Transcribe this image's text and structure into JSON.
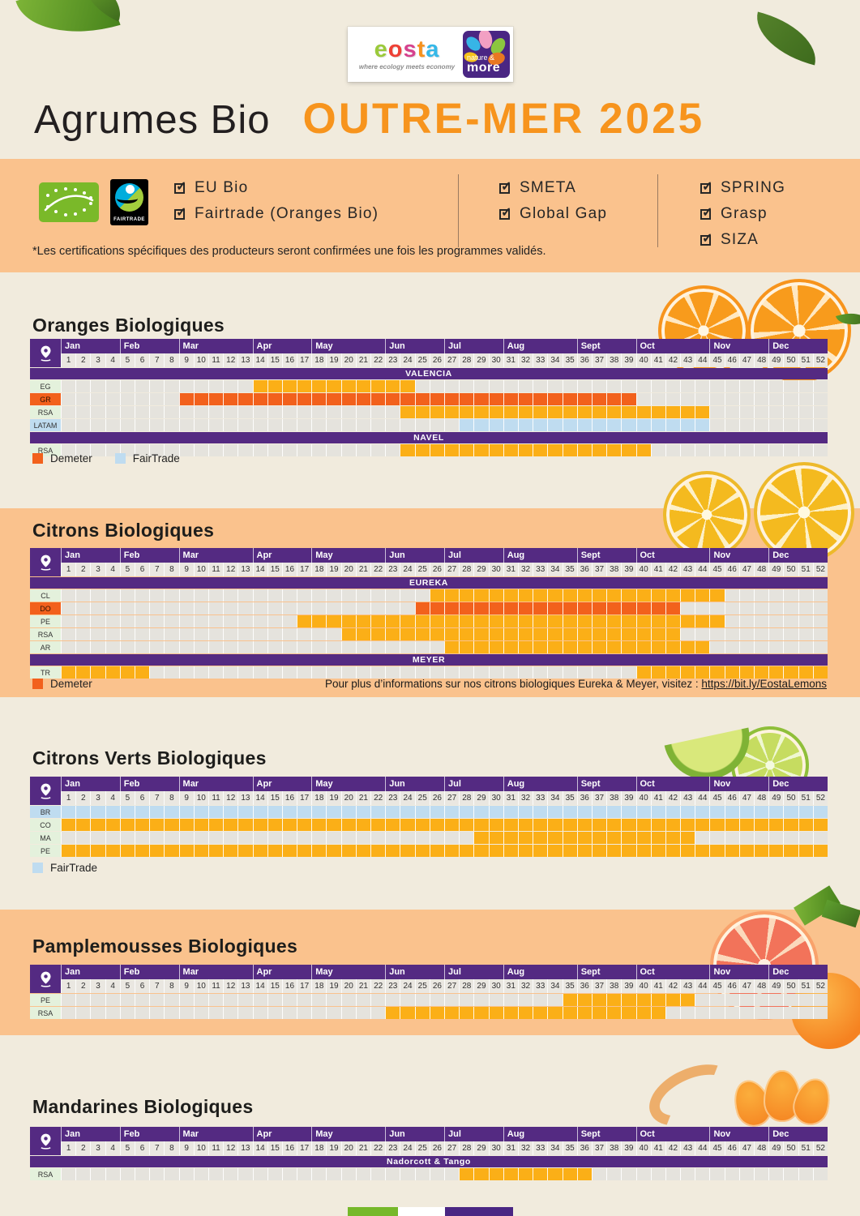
{
  "logo": {
    "brand_letters": [
      {
        "ch": "e",
        "color": "#9BCA3B"
      },
      {
        "ch": "o",
        "color": "#EE4035"
      },
      {
        "ch": "s",
        "color": "#D6428E"
      },
      {
        "ch": "t",
        "color": "#F6921E"
      },
      {
        "ch": "a",
        "color": "#35B8E8"
      }
    ],
    "tagline": "where ecology meets economy",
    "nature_more": {
      "line1": "nature &",
      "line2": "more"
    },
    "fairtrade_label": "FAIRTRADE"
  },
  "header": {
    "title_black": "Agrumes Bio",
    "title_orange": "OUTRE-MER 2025"
  },
  "certifications": {
    "groups": [
      [
        "EU Bio",
        "Fairtrade (Oranges Bio)"
      ],
      [
        "SMETA",
        "Global Gap"
      ],
      [
        "SPRING",
        "Grasp",
        "SIZA"
      ]
    ],
    "note": "*Les certifications spécifiques des producteurs seront confirmées une fois les programmes validés."
  },
  "icons": {
    "check": "✓"
  },
  "palette": {
    "yellow": "#FBAF17",
    "demeter": "#F2611C",
    "fairtrade": "#BFDCF0",
    "purple": "#542A82",
    "peach": "#FAC28D",
    "title_orange": "#F7941D"
  },
  "chart_data": {
    "type": "heatmap",
    "title": "Agrumes Bio OUTRE-MER 2025 — calendrier de disponibilité par semaine",
    "x_unit": "week",
    "week_count": 52,
    "months": [
      {
        "name": "Jan",
        "weeks": 4
      },
      {
        "name": "Feb",
        "weeks": 4
      },
      {
        "name": "Mar",
        "weeks": 5
      },
      {
        "name": "Apr",
        "weeks": 4
      },
      {
        "name": "May",
        "weeks": 5
      },
      {
        "name": "Jun",
        "weeks": 4
      },
      {
        "name": "Jul",
        "weeks": 4
      },
      {
        "name": "Aug",
        "weeks": 5
      },
      {
        "name": "Sept",
        "weeks": 4
      },
      {
        "name": "Oct",
        "weeks": 5
      },
      {
        "name": "Nov",
        "weeks": 4
      },
      {
        "name": "Dec",
        "weeks": 4
      }
    ],
    "sections": [
      {
        "id": "oranges",
        "title": "Oranges Biologiques",
        "groups": [
          {
            "band": "VALENCIA",
            "rows": [
              {
                "label": "EG",
                "bars": [
                  {
                    "start": 14,
                    "end": 24,
                    "type": "yellow"
                  }
                ]
              },
              {
                "label": "GR",
                "label_style": "demeter",
                "bars": [
                  {
                    "start": 9,
                    "end": 39,
                    "type": "demeter"
                  }
                ]
              },
              {
                "label": "RSA",
                "bars": [
                  {
                    "start": 24,
                    "end": 44,
                    "type": "yellow"
                  }
                ]
              },
              {
                "label": "LATAM",
                "label_style": "fairtrade",
                "bars": [
                  {
                    "start": 28,
                    "end": 44,
                    "type": "fairtrade"
                  }
                ]
              }
            ]
          },
          {
            "band": "NAVEL",
            "rows": [
              {
                "label": "RSA",
                "bars": [
                  {
                    "start": 24,
                    "end": 40,
                    "type": "yellow"
                  }
                ]
              }
            ]
          }
        ],
        "legend": [
          {
            "type": "demeter",
            "label": "Demeter"
          },
          {
            "type": "fairtrade",
            "label": "FairTrade"
          }
        ]
      },
      {
        "id": "citrons",
        "title": "Citrons Biologiques",
        "groups": [
          {
            "band": "EUREKA",
            "rows": [
              {
                "label": "CL",
                "bars": [
                  {
                    "start": 26,
                    "end": 45,
                    "type": "yellow"
                  }
                ]
              },
              {
                "label": "DO",
                "label_style": "demeter",
                "bars": [
                  {
                    "start": 25,
                    "end": 42,
                    "type": "demeter"
                  }
                ]
              },
              {
                "label": "PE",
                "bars": [
                  {
                    "start": 17,
                    "end": 45,
                    "type": "yellow"
                  }
                ]
              },
              {
                "label": "RSA",
                "bars": [
                  {
                    "start": 20,
                    "end": 42,
                    "type": "yellow"
                  }
                ]
              },
              {
                "label": "AR",
                "bars": [
                  {
                    "start": 27,
                    "end": 44,
                    "type": "yellow"
                  }
                ]
              }
            ]
          },
          {
            "band": "MEYER",
            "rows": [
              {
                "label": "TR",
                "bars": [
                  {
                    "start": 1,
                    "end": 6,
                    "type": "yellow"
                  },
                  {
                    "start": 40,
                    "end": 52,
                    "type": "yellow"
                  }
                ]
              }
            ]
          }
        ],
        "legend": [
          {
            "type": "demeter",
            "label": "Demeter"
          }
        ],
        "info": {
          "text": "Pour plus d’informations sur nos citrons biologiques Eureka & Meyer, visitez :",
          "link": "https://bit.ly/EostaLemons"
        }
      },
      {
        "id": "citrons-verts",
        "title": "Citrons Verts Biologiques",
        "groups": [
          {
            "rows": [
              {
                "label": "BR",
                "label_style": "fairtrade",
                "bars": [
                  {
                    "start": 1,
                    "end": 52,
                    "type": "fairtrade"
                  }
                ]
              },
              {
                "label": "CO",
                "bars": [
                  {
                    "start": 1,
                    "end": 52,
                    "type": "yellow"
                  }
                ]
              },
              {
                "label": "MA",
                "bars": [
                  {
                    "start": 29,
                    "end": 43,
                    "type": "yellow"
                  }
                ]
              },
              {
                "label": "PE",
                "bars": [
                  {
                    "start": 1,
                    "end": 52,
                    "type": "yellow"
                  }
                ]
              }
            ]
          }
        ],
        "legend": [
          {
            "type": "fairtrade",
            "label": "FairTrade"
          }
        ]
      },
      {
        "id": "pamplemousses",
        "title": "Pamplemousses Biologiques",
        "groups": [
          {
            "rows": [
              {
                "label": "PE",
                "bars": [
                  {
                    "start": 35,
                    "end": 43,
                    "type": "yellow"
                  }
                ]
              },
              {
                "label": "RSA",
                "bars": [
                  {
                    "start": 23,
                    "end": 41,
                    "type": "yellow"
                  }
                ]
              }
            ]
          }
        ]
      },
      {
        "id": "mandarines",
        "title": "Mandarines Biologiques",
        "groups": [
          {
            "band": "Nadorcott & Tango",
            "rows": [
              {
                "label": "RSA",
                "bars": [
                  {
                    "start": 28,
                    "end": 36,
                    "type": "yellow"
                  }
                ]
              }
            ]
          }
        ]
      }
    ]
  }
}
